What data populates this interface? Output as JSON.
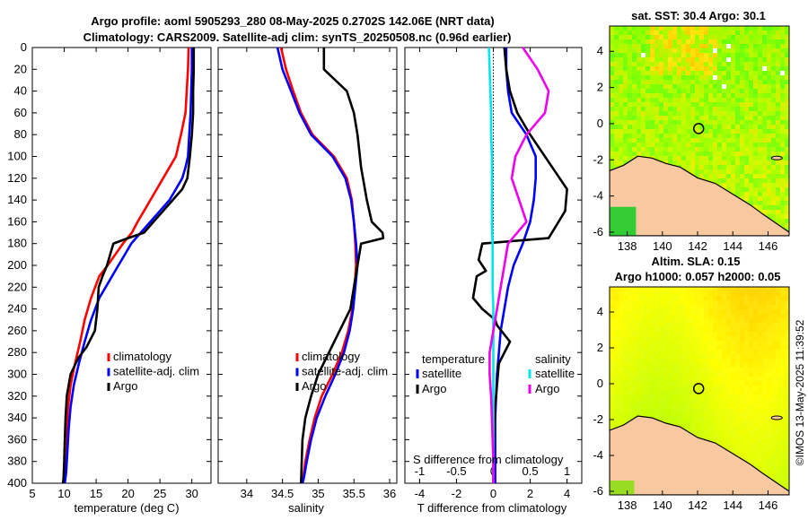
{
  "header": {
    "line1": "Argo profile: aoml 5905293_280 08-May-2025 0.2702S 142.06E (NRT data)",
    "line2": "Climatology: CARS2009. Satellite-adj clim: synTS_20250508.nc (0.96d earlier)"
  },
  "colors": {
    "climatology": "#ff0000",
    "satellite": "#0000ff",
    "argo": "#000000",
    "t_sat": "#0000ff",
    "t_argo": "#000000",
    "s_sat": "#00e5ee",
    "s_argo": "#ee00ee",
    "land": "#f8c8a0"
  },
  "chart_data": [
    {
      "type": "line",
      "id": "temperature",
      "xlabel": "temperature (deg C)",
      "ylabel": "",
      "xlim": [
        5,
        33
      ],
      "ylim": [
        400,
        0
      ],
      "xticks": [
        5,
        10,
        15,
        20,
        25,
        30
      ],
      "yticks": [
        0,
        20,
        40,
        60,
        80,
        100,
        120,
        140,
        160,
        180,
        200,
        220,
        240,
        260,
        280,
        300,
        320,
        340,
        360,
        380,
        400
      ],
      "legend": [
        "climatology",
        "satellite-adj. clim",
        "Argo"
      ],
      "series": [
        {
          "name": "climatology",
          "color_key": "climatology",
          "x": [
            29.5,
            29.4,
            29.2,
            29.0,
            28.3,
            27.5,
            26.5,
            25.5,
            24.5,
            23.5,
            22.5,
            21.5,
            20.6,
            19.2,
            18.0,
            16.8,
            15.5,
            14.2,
            13.2,
            12.5,
            11.7,
            11.0,
            10.6,
            10.4,
            10.2,
            10.1,
            10.0
          ],
          "y": [
            0,
            20,
            40,
            60,
            80,
            100,
            110,
            120,
            130,
            140,
            150,
            160,
            170,
            180,
            190,
            200,
            210,
            230,
            250,
            270,
            290,
            310,
            330,
            350,
            370,
            390,
            400
          ]
        },
        {
          "name": "satellite-adj. clim",
          "color_key": "satellite",
          "x": [
            30.0,
            30.0,
            29.9,
            29.8,
            29.6,
            29.4,
            29.0,
            28.5,
            27.5,
            26.5,
            25.0,
            23.5,
            22.0,
            20.5,
            19.5,
            18.5,
            17.5,
            16.5,
            15.5,
            14.2,
            13.2,
            12.3,
            11.5,
            11.0,
            10.7,
            10.5,
            10.3,
            10.1
          ],
          "y": [
            0,
            20,
            40,
            60,
            80,
            100,
            110,
            120,
            130,
            140,
            150,
            160,
            170,
            180,
            190,
            200,
            210,
            220,
            230,
            250,
            270,
            290,
            310,
            330,
            350,
            370,
            390,
            400
          ]
        },
        {
          "name": "Argo",
          "color_key": "argo",
          "x": [
            30.3,
            30.3,
            30.2,
            30.2,
            30.0,
            29.7,
            29.3,
            28.5,
            27.0,
            25.5,
            24.0,
            22.5,
            20.0,
            17.7,
            17.2,
            16.7,
            16.0,
            15.4,
            15.2,
            14.8,
            13.5,
            12.2,
            11.0,
            10.4,
            10.2,
            10.1,
            10.0,
            9.9,
            9.8
          ],
          "y": [
            0,
            20,
            40,
            60,
            80,
            100,
            120,
            130,
            140,
            150,
            160,
            170,
            175,
            180,
            190,
            200,
            210,
            220,
            240,
            260,
            275,
            285,
            300,
            320,
            340,
            360,
            380,
            395,
            400
          ]
        }
      ]
    },
    {
      "type": "line",
      "id": "salinity",
      "xlabel": "salinity",
      "xlim": [
        33.6,
        36.1
      ],
      "ylim": [
        400,
        0
      ],
      "xticks": [
        34,
        34.5,
        35,
        35.5,
        36
      ],
      "xticklabels": [
        "34",
        "34.5",
        "35",
        "35.5",
        "36"
      ],
      "legend": [
        "climatology",
        "satellite-adj. clim",
        "Argo"
      ],
      "series": [
        {
          "name": "climatology",
          "color_key": "climatology",
          "x": [
            34.48,
            34.55,
            34.65,
            34.76,
            34.92,
            35.22,
            35.4,
            35.47,
            35.5,
            35.52,
            35.53,
            35.51,
            35.48,
            35.42,
            35.33,
            35.2,
            35.05,
            34.95,
            34.88,
            34.82,
            34.79,
            34.77
          ],
          "y": [
            0,
            20,
            40,
            60,
            80,
            100,
            120,
            140,
            160,
            180,
            200,
            220,
            240,
            260,
            280,
            300,
            320,
            340,
            360,
            380,
            395,
            400
          ]
        },
        {
          "name": "satellite-adj. clim",
          "color_key": "satellite",
          "x": [
            34.43,
            34.5,
            34.62,
            34.74,
            34.9,
            35.2,
            35.38,
            35.46,
            35.5,
            35.53,
            35.55,
            35.52,
            35.49,
            35.44,
            35.36,
            35.24,
            35.1,
            34.98,
            34.9,
            34.84,
            34.8,
            34.78
          ],
          "y": [
            0,
            20,
            40,
            60,
            80,
            100,
            120,
            140,
            160,
            180,
            200,
            220,
            240,
            260,
            280,
            300,
            320,
            340,
            360,
            380,
            395,
            400
          ]
        },
        {
          "name": "Argo",
          "color_key": "argo",
          "x": [
            35.08,
            35.08,
            35.4,
            35.5,
            35.55,
            35.6,
            35.68,
            35.75,
            35.9,
            35.91,
            35.6,
            35.55,
            35.5,
            35.45,
            35.3,
            35.15,
            35.0,
            34.9,
            34.82,
            34.78,
            34.77,
            34.76
          ],
          "y": [
            0,
            20,
            40,
            60,
            80,
            110,
            140,
            160,
            170,
            175,
            180,
            200,
            220,
            240,
            260,
            280,
            300,
            320,
            340,
            360,
            380,
            400
          ]
        }
      ]
    },
    {
      "type": "line",
      "id": "differences",
      "xlabel": "T difference from climatology",
      "x2label": "S difference from climatology",
      "xlim": [
        -4.8,
        4.8
      ],
      "ylim": [
        400,
        0
      ],
      "xticks": [
        -4,
        -2,
        0,
        2,
        4
      ],
      "x2ticks": [
        -1,
        -0.5,
        0,
        0.5,
        1
      ],
      "x2ticklabels": [
        "-1",
        "-0.5",
        "0",
        "0.5",
        "1"
      ],
      "legend": {
        "temperature": [
          "satellite",
          "Argo"
        ],
        "salinity": [
          "satellite",
          "Argo"
        ]
      },
      "legend_titles": {
        "temperature": "temperature",
        "salinity": "salinity"
      },
      "series": [
        {
          "name": "T satellite",
          "color_key": "t_sat",
          "x": [
            0.7,
            0.7,
            0.8,
            1.0,
            1.8,
            2.3,
            2.3,
            2.2,
            2.0,
            1.6,
            1.1,
            0.8,
            0.6,
            0.4,
            0.3,
            0.2,
            0.15,
            0.1,
            0.1,
            0.1,
            0.1
          ],
          "y": [
            0,
            20,
            40,
            60,
            80,
            100,
            120,
            140,
            160,
            180,
            200,
            220,
            240,
            260,
            280,
            300,
            320,
            340,
            360,
            380,
            400
          ]
        },
        {
          "name": "T Argo",
          "color_key": "t_argo",
          "x": [
            0.6,
            0.7,
            0.9,
            1.3,
            2.0,
            3.2,
            4.0,
            3.9,
            3.0,
            -0.6,
            -0.8,
            -0.4,
            -0.9,
            -1.1,
            -0.6,
            0.1,
            0.2,
            0.9,
            0.3,
            0.2,
            0.1,
            0.05,
            0.0,
            0.0
          ],
          "y": [
            0,
            20,
            40,
            60,
            80,
            110,
            130,
            150,
            175,
            180,
            195,
            205,
            210,
            230,
            240,
            250,
            255,
            270,
            290,
            310,
            330,
            350,
            380,
            400
          ]
        },
        {
          "name": "S satellite",
          "color_key": "s_sat",
          "x": [
            -0.06,
            -0.05,
            -0.04,
            -0.03,
            -0.03,
            -0.02,
            -0.02,
            -0.02,
            -0.02,
            -0.01,
            -0.01,
            -0.01,
            0.0,
            0.0,
            0.0,
            0.0,
            0.0,
            0.0,
            0.0,
            0.0,
            0.0
          ],
          "y": [
            0,
            20,
            40,
            60,
            80,
            100,
            120,
            140,
            160,
            180,
            200,
            220,
            240,
            260,
            280,
            300,
            320,
            340,
            360,
            380,
            400
          ]
        },
        {
          "name": "S Argo",
          "color_key": "s_argo",
          "x": [
            0.4,
            0.6,
            0.75,
            0.7,
            0.45,
            0.3,
            0.25,
            0.35,
            0.45,
            0.2,
            0.15,
            0.1,
            0.05,
            0.0,
            -0.05,
            -0.05,
            -0.03,
            -0.02,
            -0.01,
            0.0,
            0.0
          ],
          "y": [
            0,
            20,
            40,
            60,
            80,
            100,
            120,
            140,
            160,
            180,
            200,
            220,
            240,
            260,
            280,
            300,
            320,
            340,
            360,
            380,
            400
          ]
        }
      ]
    },
    {
      "type": "heatmap",
      "id": "sst_map",
      "title": "sat. SST: 30.4 Argo: 30.1",
      "xlim": [
        137,
        147.2
      ],
      "ylim": [
        -6.2,
        5.4
      ],
      "xticks": [
        138,
        140,
        142,
        144,
        146
      ],
      "yticks": [
        -6,
        -4,
        -2,
        0,
        2,
        4
      ],
      "float_position": {
        "lon": 142.06,
        "lat": -0.27
      }
    },
    {
      "type": "heatmap",
      "id": "sla_map",
      "title_line1": "Altim. SLA: 0.15",
      "title_line2": "Argo h1000: 0.057 h2000: 0.05",
      "xlim": [
        137,
        147.2
      ],
      "ylim": [
        -6.2,
        5.4
      ],
      "xticks": [
        138,
        140,
        142,
        144,
        146
      ],
      "yticks": [
        -6,
        -4,
        -2,
        0,
        2,
        4
      ],
      "float_position": {
        "lon": 142.06,
        "lat": -0.27
      }
    }
  ],
  "footer": {
    "stamp": "©IMOS 13-May-2025 11:39:52"
  }
}
